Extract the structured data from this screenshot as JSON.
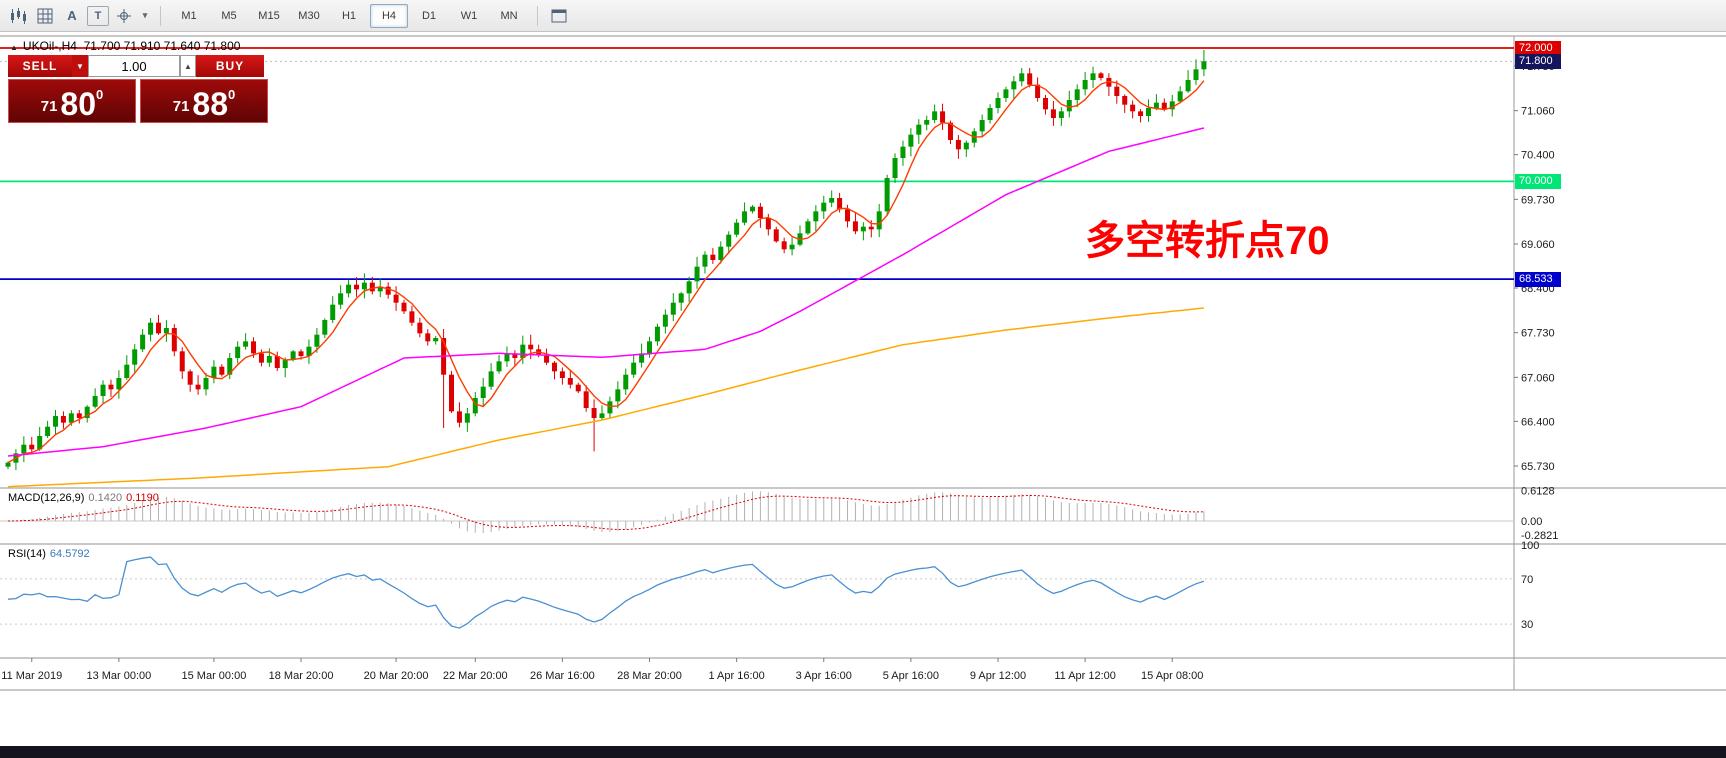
{
  "toolbar": {
    "icon_a": "A",
    "icon_t": "T",
    "chevron": "▾",
    "timeframes": [
      {
        "label": "M1",
        "active": false
      },
      {
        "label": "M5",
        "active": false
      },
      {
        "label": "M15",
        "active": false
      },
      {
        "label": "M30",
        "active": false
      },
      {
        "label": "H1",
        "active": false
      },
      {
        "label": "H4",
        "active": true
      },
      {
        "label": "D1",
        "active": false
      },
      {
        "label": "W1",
        "active": false
      },
      {
        "label": "MN",
        "active": false
      }
    ]
  },
  "chart": {
    "marker": "▲",
    "title_symbol": "UKOil-,H4",
    "title_ohlc": "71.700 71.910 71.640 71.800",
    "annotation": "多空转折点70",
    "annotation_color": "#ff0000"
  },
  "trade_panel": {
    "sell_label": "SELL",
    "buy_label": "BUY",
    "volume": "1.00",
    "spinner_down": "▼",
    "spinner_up": "▲",
    "sell_price": {
      "int": "71",
      "big": "80",
      "sup": "0"
    },
    "buy_price": {
      "int": "71",
      "big": "88",
      "sup": "0"
    }
  },
  "indicators": {
    "macd_name": "MACD(12,26,9)",
    "macd_value_main": "0.1420",
    "macd_value_signal": "0.1190",
    "rsi_name": "RSI(14)",
    "rsi_value": "64.5792"
  },
  "chart_data": {
    "type": "candlestick",
    "symbol": "UKOil-",
    "timeframe": "H4",
    "ohlc_display": {
      "open": 71.7,
      "high": 71.91,
      "low": 71.64,
      "close": 71.8
    },
    "colors": {
      "up": "#009b00",
      "down": "#dd0000"
    },
    "closes": [
      65.78,
      65.92,
      66.05,
      65.98,
      66.18,
      66.32,
      66.48,
      66.38,
      66.52,
      66.45,
      66.62,
      66.78,
      66.95,
      66.88,
      67.05,
      67.25,
      67.48,
      67.7,
      67.88,
      67.72,
      67.8,
      67.45,
      67.15,
      66.95,
      66.88,
      67.05,
      67.22,
      67.1,
      67.35,
      67.52,
      67.6,
      67.42,
      67.28,
      67.38,
      67.2,
      67.32,
      67.45,
      67.38,
      67.52,
      67.7,
      67.92,
      68.15,
      68.32,
      68.45,
      68.38,
      68.48,
      68.35,
      68.42,
      68.3,
      68.18,
      68.05,
      67.88,
      67.72,
      67.6,
      67.65,
      67.1,
      66.55,
      66.38,
      66.52,
      66.75,
      66.92,
      67.15,
      67.3,
      67.42,
      67.35,
      67.55,
      67.48,
      67.4,
      67.28,
      67.15,
      67.05,
      66.95,
      66.85,
      66.6,
      66.45,
      66.52,
      66.7,
      66.88,
      67.1,
      67.28,
      67.42,
      67.6,
      67.82,
      68.0,
      68.18,
      68.32,
      68.5,
      68.72,
      68.9,
      68.82,
      69.02,
      69.2,
      69.38,
      69.55,
      69.62,
      69.45,
      69.28,
      69.1,
      68.98,
      69.05,
      69.22,
      69.4,
      69.55,
      69.68,
      69.75,
      69.58,
      69.4,
      69.25,
      69.32,
      69.28,
      69.55,
      70.05,
      70.35,
      70.52,
      70.7,
      70.85,
      70.92,
      71.05,
      70.88,
      70.62,
      70.48,
      70.58,
      70.75,
      70.92,
      71.1,
      71.25,
      71.38,
      71.5,
      71.62,
      71.45,
      71.25,
      71.08,
      70.95,
      71.05,
      71.22,
      71.38,
      71.52,
      71.62,
      71.55,
      71.42,
      71.28,
      71.15,
      71.05,
      70.98,
      71.1,
      71.18,
      71.08,
      71.2,
      71.35,
      71.52,
      71.68,
      71.8
    ],
    "wick_overrides": [
      {
        "i": 18,
        "high": 67.95
      },
      {
        "i": 45,
        "high": 68.62
      },
      {
        "i": 55,
        "low": 66.3
      },
      {
        "i": 74,
        "low": 65.95
      },
      {
        "i": 128,
        "high": 71.7
      },
      {
        "i": 137,
        "high": 71.72
      },
      {
        "i": 151,
        "high": 71.97
      }
    ],
    "hlines": [
      {
        "price": 72.0,
        "label": "72.000",
        "color": "#dd0000",
        "text_color": "#ffffff"
      },
      {
        "price": 70.0,
        "label": "70.000",
        "color": "#00e676",
        "text_color": "#ffffff"
      },
      {
        "price": 68.533,
        "label": "68.533",
        "color": "#0000cc",
        "text_color": "#ffffff"
      }
    ],
    "current_price": {
      "value": 71.8,
      "label": "71.800",
      "badge_color": "#15155e"
    },
    "y_ticks": [
      {
        "value": 71.73,
        "label": "71.730"
      },
      {
        "value": 71.06,
        "label": "71.060"
      },
      {
        "value": 70.4,
        "label": "70.400"
      },
      {
        "value": 69.73,
        "label": "69.730"
      },
      {
        "value": 69.06,
        "label": "69.060"
      },
      {
        "value": 68.4,
        "label": "68.400"
      },
      {
        "value": 67.73,
        "label": "67.730"
      },
      {
        "value": 67.06,
        "label": "67.060"
      },
      {
        "value": 66.4,
        "label": "66.400"
      },
      {
        "value": 65.73,
        "label": "65.730"
      }
    ],
    "x_labels": [
      {
        "index": 3,
        "text": "11 Mar 2019"
      },
      {
        "index": 14,
        "text": "13 Mar 00:00"
      },
      {
        "index": 26,
        "text": "15 Mar 00:00"
      },
      {
        "index": 37,
        "text": "18 Mar 20:00"
      },
      {
        "index": 49,
        "text": "20 Mar 20:00"
      },
      {
        "index": 59,
        "text": "22 Mar 20:00"
      },
      {
        "index": 70,
        "text": "26 Mar 16:00"
      },
      {
        "index": 81,
        "text": "28 Mar 20:00"
      },
      {
        "index": 92,
        "text": "1 Apr 16:00"
      },
      {
        "index": 103,
        "text": "3 Apr 16:00"
      },
      {
        "index": 114,
        "text": "5 Apr 16:00"
      },
      {
        "index": 125,
        "text": "9 Apr 12:00"
      },
      {
        "index": 136,
        "text": "11 Apr 12:00"
      },
      {
        "index": 147,
        "text": "15 Apr 08:00"
      }
    ],
    "ma": {
      "fast": {
        "period": 5,
        "color": "#ff3c00"
      },
      "mid": {
        "color": "#ff00ff",
        "anchors": [
          [
            0,
            65.88
          ],
          [
            12,
            66.02
          ],
          [
            25,
            66.3
          ],
          [
            37,
            66.62
          ],
          [
            50,
            67.35
          ],
          [
            62,
            67.42
          ],
          [
            75,
            67.36
          ],
          [
            88,
            67.48
          ],
          [
            95,
            67.75
          ],
          [
            100,
            68.05
          ],
          [
            113,
            68.9
          ],
          [
            126,
            69.8
          ],
          [
            139,
            70.45
          ],
          [
            151,
            70.8
          ]
        ]
      },
      "slow": {
        "color": "#ffaa00",
        "anchors": [
          [
            0,
            65.42
          ],
          [
            24,
            65.55
          ],
          [
            48,
            65.72
          ],
          [
            62,
            66.12
          ],
          [
            75,
            66.42
          ],
          [
            88,
            66.8
          ],
          [
            100,
            67.17
          ],
          [
            113,
            67.55
          ],
          [
            126,
            67.77
          ],
          [
            139,
            67.95
          ],
          [
            151,
            68.1
          ]
        ]
      }
    },
    "macd": {
      "params": [
        12,
        26,
        9
      ],
      "main_color": "#b2b2b2",
      "signal_color": "#dd0000",
      "axis": [
        {
          "value": 0.6128,
          "label": "0.6128"
        },
        {
          "value": 0,
          "label": "0.00"
        },
        {
          "value": -0.2821,
          "label": "-0.2821"
        }
      ]
    },
    "rsi": {
      "period": 14,
      "color": "#4a90d2",
      "levels": [
        70,
        30
      ],
      "axis": [
        {
          "value": 100,
          "label": "100"
        },
        {
          "value": 70,
          "label": "70"
        },
        {
          "value": 30,
          "label": "30"
        }
      ]
    }
  }
}
